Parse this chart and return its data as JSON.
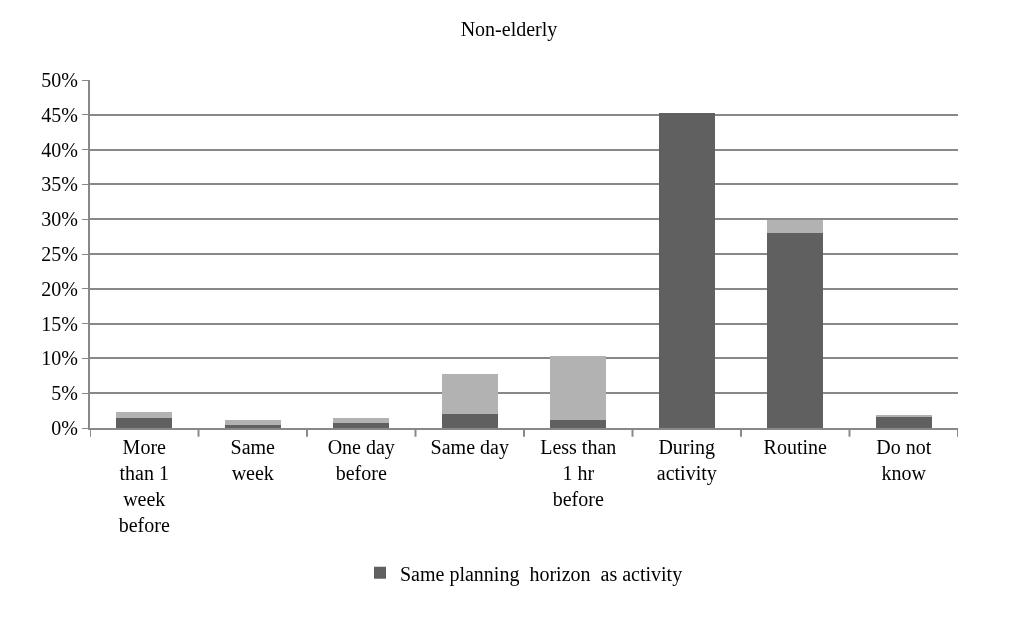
{
  "chart_data": {
    "type": "bar",
    "title": "Non-elderly",
    "stacked": true,
    "categories": [
      "More\nthan 1\nweek\nbefore",
      "Same\nweek",
      "One day\nbefore",
      "Same day",
      "Less than\n1 hr\nbefore",
      "During\nactivity",
      "Routine",
      "Do not\nknow"
    ],
    "series": [
      {
        "name": "Same planning  horizon  as activity",
        "color": "#606060",
        "values": [
          1.5,
          0.4,
          0.7,
          2.0,
          1.2,
          45.3,
          28.0,
          1.6
        ]
      },
      {
        "color": "#b2b2b2",
        "values": [
          0.8,
          0.8,
          0.8,
          5.7,
          9.1,
          0,
          1.9,
          0.2
        ]
      }
    ],
    "ylim": [
      0,
      50
    ],
    "yticks": [
      {
        "value": 0,
        "label": "0%"
      },
      {
        "value": 5,
        "label": "5%"
      },
      {
        "value": 10,
        "label": "10%"
      },
      {
        "value": 15,
        "label": "15%"
      },
      {
        "value": 20,
        "label": "20%"
      },
      {
        "value": 25,
        "label": "25%"
      },
      {
        "value": 30,
        "label": "30%"
      },
      {
        "value": 35,
        "label": "35%"
      },
      {
        "value": 40,
        "label": "40%"
      },
      {
        "value": 45,
        "label": "45%"
      },
      {
        "value": 50,
        "label": "50%"
      }
    ],
    "grid": "y",
    "legend": "bottom"
  }
}
